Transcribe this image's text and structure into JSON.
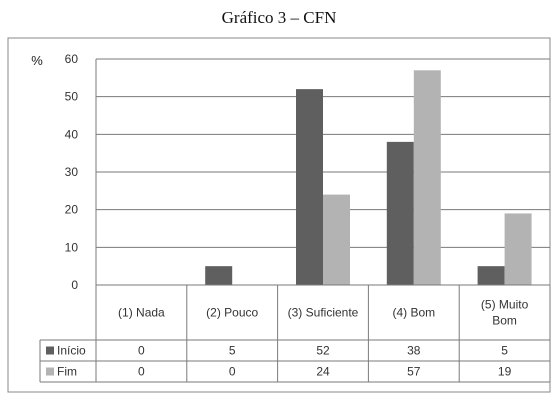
{
  "chart_data": {
    "type": "bar",
    "title": "Gráfico 3 – CFN",
    "ylabel": "%",
    "ylim": [
      0,
      60
    ],
    "yticks": [
      0,
      10,
      20,
      30,
      40,
      50,
      60
    ],
    "grid": true,
    "legend_placement": "data-table",
    "categories": [
      [
        "(1) Nada"
      ],
      [
        "(2) Pouco"
      ],
      [
        "(3) Suficiente"
      ],
      [
        "(4) Bom"
      ],
      [
        "(5) Muito",
        "Bom"
      ]
    ],
    "series": [
      {
        "name": "Início",
        "color": "#5f5f5f",
        "values": [
          0,
          5,
          52,
          38,
          5
        ]
      },
      {
        "name": "Fim",
        "color": "#b3b3b3",
        "values": [
          0,
          0,
          24,
          57,
          19
        ]
      }
    ]
  }
}
